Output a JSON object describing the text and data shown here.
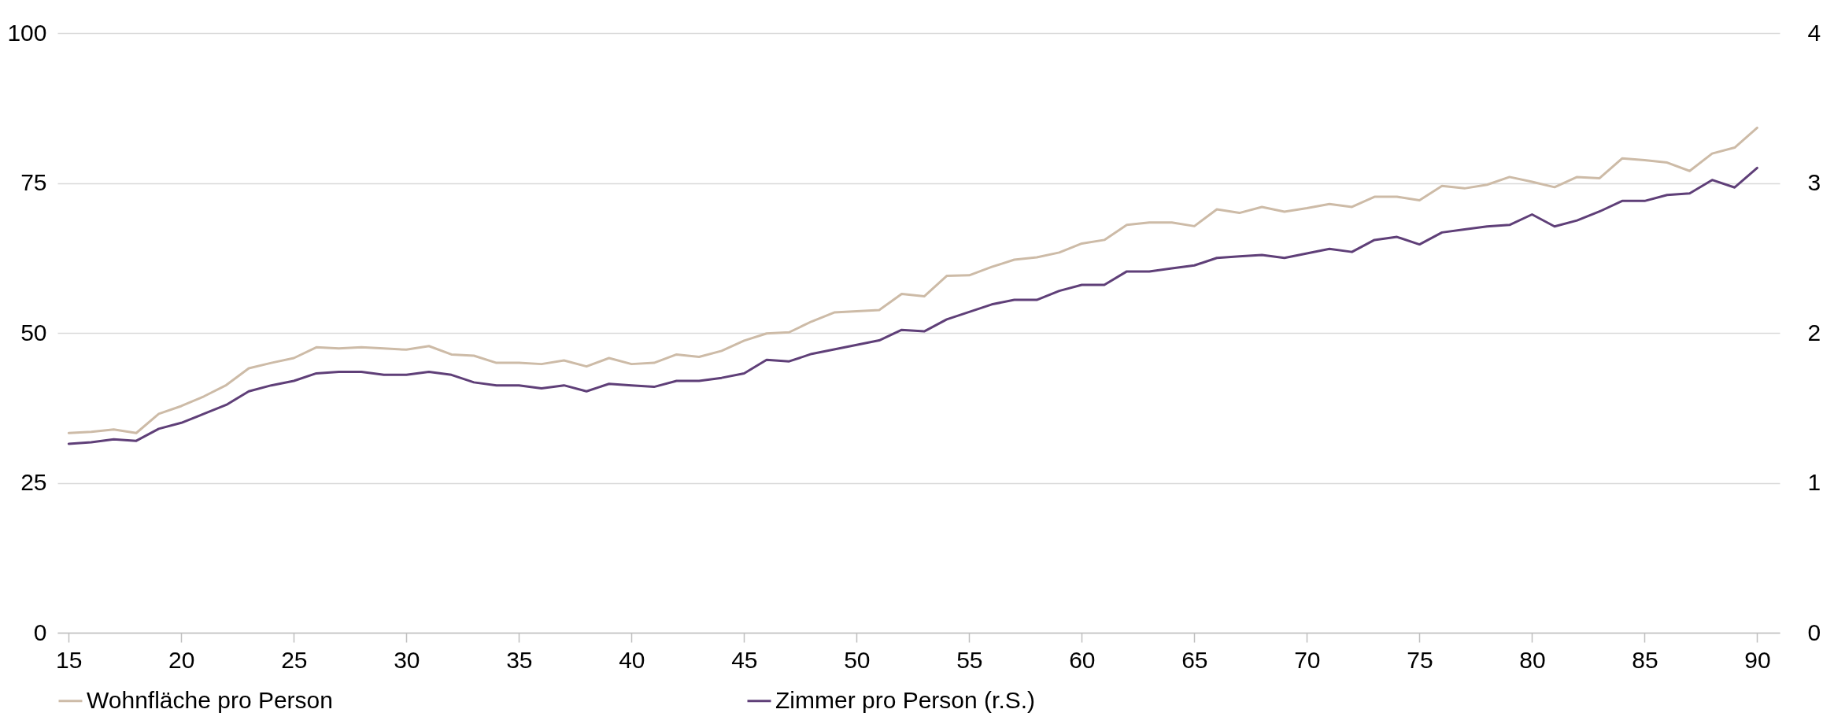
{
  "chart_data": {
    "type": "line",
    "x": [
      15,
      16,
      17,
      18,
      19,
      20,
      21,
      22,
      23,
      24,
      25,
      26,
      27,
      28,
      29,
      30,
      31,
      32,
      33,
      34,
      35,
      36,
      37,
      38,
      39,
      40,
      41,
      42,
      43,
      44,
      45,
      46,
      47,
      48,
      49,
      50,
      51,
      52,
      53,
      54,
      55,
      56,
      57,
      58,
      59,
      60,
      61,
      62,
      63,
      64,
      65,
      66,
      67,
      68,
      69,
      70,
      71,
      72,
      73,
      74,
      75,
      76,
      77,
      78,
      79,
      80,
      81,
      82,
      83,
      84,
      85,
      86,
      87,
      88,
      89,
      90
    ],
    "series": [
      {
        "name": "Wohnfläche pro Person",
        "color": "#cdbba7",
        "values": [
          33.3,
          33.5,
          33.9,
          33.3,
          36.5,
          37.8,
          39.4,
          41.3,
          44.1,
          45.0,
          45.8,
          47.6,
          47.4,
          47.6,
          47.4,
          47.2,
          47.8,
          46.4,
          46.2,
          45.0,
          45.0,
          44.8,
          45.4,
          44.4,
          45.8,
          44.8,
          45.0,
          46.4,
          46.0,
          47.0,
          48.7,
          49.9,
          50.1,
          51.9,
          53.4,
          53.6,
          53.8,
          56.5,
          56.1,
          59.5,
          59.6,
          61.0,
          62.2,
          62.6,
          63.4,
          64.9,
          65.5,
          68.0,
          68.4,
          68.4,
          67.8,
          70.6,
          70.0,
          71.0,
          70.2,
          70.8,
          71.5,
          71.0,
          72.7,
          72.7,
          72.1,
          74.5,
          74.1,
          74.7,
          76.0,
          75.2,
          74.3,
          76.0,
          75.8,
          79.1,
          78.8,
          78.4,
          77.0,
          79.9,
          80.9,
          84.2
        ]
      },
      {
        "name": "Zimmer pro Person (r.S.)",
        "color": "#5f3f78",
        "axis": "y2",
        "values": [
          1.26,
          1.27,
          1.29,
          1.28,
          1.36,
          1.4,
          1.46,
          1.52,
          1.61,
          1.65,
          1.68,
          1.73,
          1.74,
          1.74,
          1.72,
          1.72,
          1.74,
          1.72,
          1.67,
          1.65,
          1.65,
          1.63,
          1.65,
          1.61,
          1.66,
          1.65,
          1.64,
          1.68,
          1.68,
          1.7,
          1.73,
          1.82,
          1.81,
          1.86,
          1.89,
          1.92,
          1.95,
          2.02,
          2.01,
          2.09,
          2.14,
          2.19,
          2.22,
          2.22,
          2.28,
          2.32,
          2.32,
          2.41,
          2.41,
          2.43,
          2.45,
          2.5,
          2.51,
          2.52,
          2.5,
          2.53,
          2.56,
          2.54,
          2.62,
          2.64,
          2.59,
          2.67,
          2.69,
          2.71,
          2.72,
          2.79,
          2.71,
          2.75,
          2.81,
          2.88,
          2.88,
          2.92,
          2.93,
          3.02,
          2.97,
          3.1
        ]
      }
    ],
    "xlim": [
      14.5,
      91
    ],
    "xticks": [
      15,
      20,
      25,
      30,
      35,
      40,
      45,
      50,
      55,
      60,
      65,
      70,
      75,
      80,
      85,
      90
    ],
    "ylim": [
      0,
      100
    ],
    "yticks": [
      0,
      25,
      50,
      75,
      100
    ],
    "y2lim": [
      0,
      4
    ],
    "y2ticks": [
      0,
      1,
      2,
      3,
      4
    ],
    "grid": "y",
    "legend": "bottom"
  }
}
